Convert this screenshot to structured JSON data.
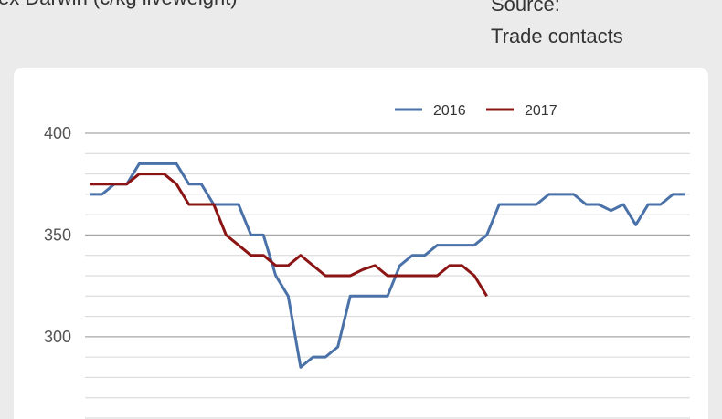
{
  "header": {
    "subtitle": "ex Darwin (c/kg liveweight)",
    "source_label": "Source:",
    "source": "Trade contacts"
  },
  "chart_data": {
    "type": "line",
    "categories": [
      null,
      null,
      null,
      null,
      null,
      null,
      null,
      null,
      null,
      null,
      null,
      null,
      null,
      null,
      null,
      null,
      null,
      null,
      null,
      null,
      null,
      null,
      null,
      null,
      null,
      null,
      null,
      null,
      null,
      null,
      null,
      null,
      null,
      null,
      null,
      null,
      null,
      null,
      null,
      null,
      null,
      null,
      null,
      null,
      null,
      null,
      null,
      null,
      null
    ],
    "series": [
      {
        "name": "2016",
        "color": "#4a72a8",
        "values": [
          370,
          370,
          375,
          375,
          385,
          385,
          385,
          385,
          375,
          375,
          365,
          365,
          365,
          350,
          350,
          330,
          320,
          285,
          290,
          290,
          295,
          320,
          320,
          320,
          320,
          335,
          340,
          340,
          345,
          345,
          345,
          345,
          350,
          365,
          365,
          365,
          365,
          370,
          370,
          370,
          365,
          365,
          362,
          365,
          355,
          365,
          365,
          370,
          370
        ]
      },
      {
        "name": "2017",
        "color": "#8b1414",
        "values": [
          375,
          375,
          375,
          375,
          380,
          380,
          380,
          375,
          365,
          365,
          365,
          350,
          345,
          340,
          340,
          335,
          335,
          340,
          335,
          330,
          330,
          330,
          333,
          335,
          330,
          330,
          330,
          330,
          330,
          335,
          335,
          330,
          320,
          null,
          null,
          null,
          null,
          null,
          null,
          null,
          null,
          null,
          null,
          null,
          null,
          null,
          null,
          null,
          null
        ]
      }
    ],
    "ylim": [
      260,
      400
    ],
    "yticks": [
      300,
      350,
      400
    ],
    "minor_yticks": [
      260,
      270,
      280,
      290,
      310,
      320,
      330,
      340,
      360,
      370,
      380,
      390
    ],
    "grid": true,
    "legend": "top"
  }
}
